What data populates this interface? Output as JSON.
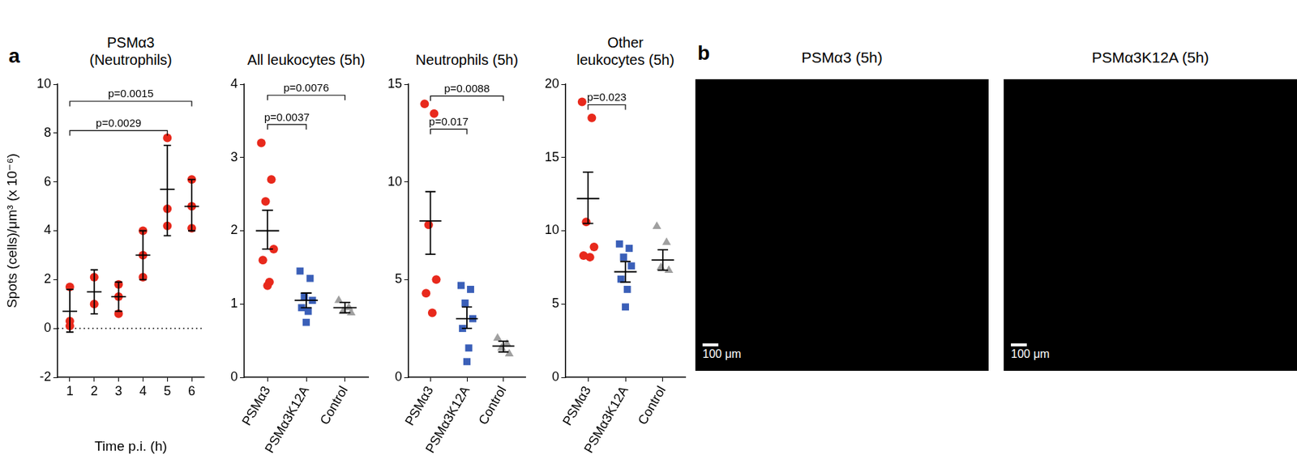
{
  "panel_labels": [
    "a",
    "b"
  ],
  "chart_data": [
    {
      "type": "scatter",
      "title": [
        "PSMα3",
        "(Neutrophils)"
      ],
      "y_label": "Spots (cells)/μm³ (x 10⁻⁶)",
      "x_label": "Time p.i. (h)",
      "x": [
        1,
        2,
        3,
        4,
        5,
        6
      ],
      "xlim": [
        0.5,
        6.5
      ],
      "xticks": [
        1,
        2,
        3,
        4,
        5,
        6
      ],
      "ylim": [
        -2,
        10
      ],
      "yticks": [
        -2,
        0,
        2,
        4,
        6,
        8,
        10
      ],
      "grid": false,
      "reference_line": 0,
      "groups": [
        {
          "color": "#e8291c",
          "marker": "circle",
          "values": [
            1.7,
            0.3,
            0.1
          ],
          "mean": 0.7,
          "error_low": -0.15,
          "error_high": 1.6
        },
        {
          "color": "#e8291c",
          "marker": "circle",
          "values": [
            2.1,
            1.0
          ],
          "mean": 1.5,
          "error_low": 0.6,
          "error_high": 2.4
        },
        {
          "color": "#e8291c",
          "marker": "circle",
          "values": [
            1.8,
            1.3,
            0.6
          ],
          "mean": 1.3,
          "error_low": 0.7,
          "error_high": 1.9
        },
        {
          "color": "#e8291c",
          "marker": "circle",
          "values": [
            4.0,
            3.0,
            2.1
          ],
          "mean": 3.0,
          "error_low": 2.0,
          "error_high": 4.0
        },
        {
          "color": "#e8291c",
          "marker": "circle",
          "values": [
            7.8,
            4.9,
            4.2
          ],
          "mean": 5.7,
          "error_low": 3.8,
          "error_high": 7.5
        },
        {
          "color": "#e8291c",
          "marker": "circle",
          "values": [
            6.1,
            5.0,
            4.1
          ],
          "mean": 5.0,
          "error_low": 4.0,
          "error_high": 6.1
        }
      ],
      "annotations": [
        {
          "text": "p=0.0029",
          "from": 1,
          "to": 5,
          "y": 8.1
        },
        {
          "text": "p=0.0015",
          "from": 1,
          "to": 6,
          "y": 9.3
        }
      ]
    },
    {
      "type": "scatter",
      "title": [
        "All leukocytes (5h)"
      ],
      "categories": [
        "PSMα3",
        "PSMα3K12A",
        "Control"
      ],
      "ylim": [
        0,
        4
      ],
      "yticks": [
        0,
        1,
        2,
        3,
        4
      ],
      "grid": false,
      "groups": [
        {
          "color": "#e8291c",
          "marker": "circle",
          "values": [
            3.2,
            2.7,
            2.4,
            1.75,
            1.6,
            1.3,
            1.25
          ],
          "mean": 2.0,
          "error_low": 1.75,
          "error_high": 2.28
        },
        {
          "color": "#3a5fb8",
          "marker": "square",
          "values": [
            1.45,
            1.35,
            1.1,
            1.05,
            0.95,
            0.9,
            0.75
          ],
          "mean": 1.05,
          "error_low": 0.95,
          "error_high": 1.15
        },
        {
          "color": "#a0a0a0",
          "marker": "triangle",
          "values": [
            1.05,
            0.95,
            0.9,
            0.88
          ],
          "mean": 0.95,
          "error_low": 0.88,
          "error_high": 1.02
        }
      ],
      "annotations": [
        {
          "text": "p=0.0037",
          "from": "PSMα3",
          "to": "PSMα3K12A",
          "y": 3.45
        },
        {
          "text": "p=0.0076",
          "from": "PSMα3",
          "to": "Control",
          "y": 3.85
        }
      ]
    },
    {
      "type": "scatter",
      "title": [
        "Neutrophils (5h)"
      ],
      "categories": [
        "PSMα3",
        "PSMα3K12A",
        "Control"
      ],
      "ylim": [
        0,
        15
      ],
      "yticks": [
        0,
        5,
        10,
        15
      ],
      "grid": false,
      "groups": [
        {
          "color": "#e8291c",
          "marker": "circle",
          "values": [
            14.0,
            13.5,
            7.8,
            5.0,
            4.3,
            3.3
          ],
          "mean": 8.0,
          "error_low": 6.3,
          "error_high": 9.5
        },
        {
          "color": "#3a5fb8",
          "marker": "square",
          "values": [
            4.7,
            4.5,
            3.8,
            3.0,
            2.5,
            1.5,
            0.8
          ],
          "mean": 3.0,
          "error_low": 2.5,
          "error_high": 3.6
        },
        {
          "color": "#a0a0a0",
          "marker": "triangle",
          "values": [
            2.0,
            1.7,
            1.5,
            1.2
          ],
          "mean": 1.6,
          "error_low": 1.3,
          "error_high": 1.85
        }
      ],
      "annotations": [
        {
          "text": "p=0.017",
          "from": "PSMα3",
          "to": "PSMα3K12A",
          "y": 12.7
        },
        {
          "text": "p=0.0088",
          "from": "PSMα3",
          "to": "Control",
          "y": 14.4
        }
      ]
    },
    {
      "type": "scatter",
      "title": [
        "Other",
        "leukocytes (5h)"
      ],
      "categories": [
        "PSMα3",
        "PSMα3K12A",
        "Control"
      ],
      "ylim": [
        0,
        20
      ],
      "yticks": [
        0,
        5,
        10,
        15,
        20
      ],
      "grid": false,
      "groups": [
        {
          "color": "#e8291c",
          "marker": "circle",
          "values": [
            18.8,
            17.7,
            10.6,
            8.9,
            8.3,
            8.2
          ],
          "mean": 12.2,
          "error_low": 10.5,
          "error_high": 14.0
        },
        {
          "color": "#3a5fb8",
          "marker": "square",
          "values": [
            9.1,
            8.8,
            8.2,
            7.6,
            6.7,
            6.0,
            4.8
          ],
          "mean": 7.2,
          "error_low": 6.5,
          "error_high": 7.9
        },
        {
          "color": "#a0a0a0",
          "marker": "triangle",
          "values": [
            10.3,
            9.2,
            7.5,
            7.3
          ],
          "mean": 8.0,
          "error_low": 7.3,
          "error_high": 8.7
        }
      ],
      "annotations": [
        {
          "text": "p=0.023",
          "from": "PSMα3",
          "to": "PSMα3K12A",
          "y": 18.6
        }
      ]
    }
  ],
  "images": [
    {
      "title": "PSMα3 (5h)",
      "scale_bar": "100 μm"
    },
    {
      "title": "PSMα3K12A (5h)",
      "scale_bar": "100 μm"
    }
  ]
}
